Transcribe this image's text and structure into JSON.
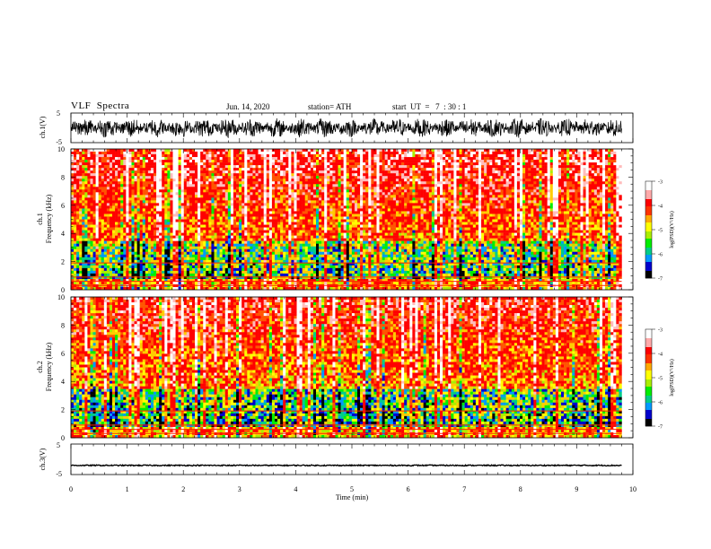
{
  "header": {
    "title": "VLF  Spectra",
    "date": "Jun. 14, 2020",
    "station": "station= ATH",
    "start_ut": "start  UT  =   7  : 30 : 1"
  },
  "colors": {
    "background": "#ffffff",
    "axis": "#000000",
    "colormap": [
      "#000000",
      "#0000cc",
      "#0099ff",
      "#00cc88",
      "#00ee00",
      "#aaee00",
      "#ffff00",
      "#ffaa00",
      "#ff3300",
      "#ff0000",
      "#ffaaaa",
      "#ffffff"
    ]
  },
  "chart_data": [
    {
      "type": "line",
      "ylabel": "ch.1(V)",
      "yticks": [
        "5",
        "-5"
      ],
      "ylim": [
        -5,
        5
      ],
      "xlim": [
        0,
        10
      ],
      "series": [
        {
          "values_description_range": [
            -3,
            3
          ]
        }
      ]
    },
    {
      "type": "heatmap",
      "ylabel_channel": "ch.1",
      "ylabel": "Frequency  (kHz)",
      "ylim": [
        0,
        10
      ],
      "yticks": [
        "0",
        "2",
        "4",
        "6",
        "8",
        "10"
      ],
      "xlim": [
        0,
        10
      ],
      "data_extent_x": [
        0,
        9.8
      ],
      "colorbar": {
        "label": "log(PSD)(V²/Hz)",
        "range": [
          -7,
          -3
        ],
        "ticks": [
          "-3",
          "-4",
          "-5",
          "-6",
          "-7"
        ]
      }
    },
    {
      "type": "heatmap",
      "ylabel_channel": "ch.2",
      "ylabel": "Frequency  (kHz)",
      "ylim": [
        0,
        10
      ],
      "yticks": [
        "0",
        "2",
        "4",
        "6",
        "8",
        "10"
      ],
      "xlim": [
        0,
        10
      ],
      "data_extent_x": [
        0,
        9.8
      ],
      "colorbar": {
        "label": "log(PSD)(V²/Hz)",
        "range": [
          -7,
          -3
        ],
        "ticks": [
          "-3",
          "-4",
          "-5",
          "-6",
          "-7"
        ]
      }
    },
    {
      "type": "line",
      "ylabel": "ch.3(V)",
      "yticks": [
        "5",
        "-5"
      ],
      "ylim": [
        -5,
        5
      ],
      "xlim": [
        0,
        10
      ],
      "series": [
        {
          "level": -2
        }
      ]
    }
  ],
  "xaxis": {
    "label": "Time  (min)",
    "ticks": [
      "0",
      "1",
      "2",
      "3",
      "4",
      "5",
      "6",
      "7",
      "8",
      "9",
      "10"
    ]
  }
}
